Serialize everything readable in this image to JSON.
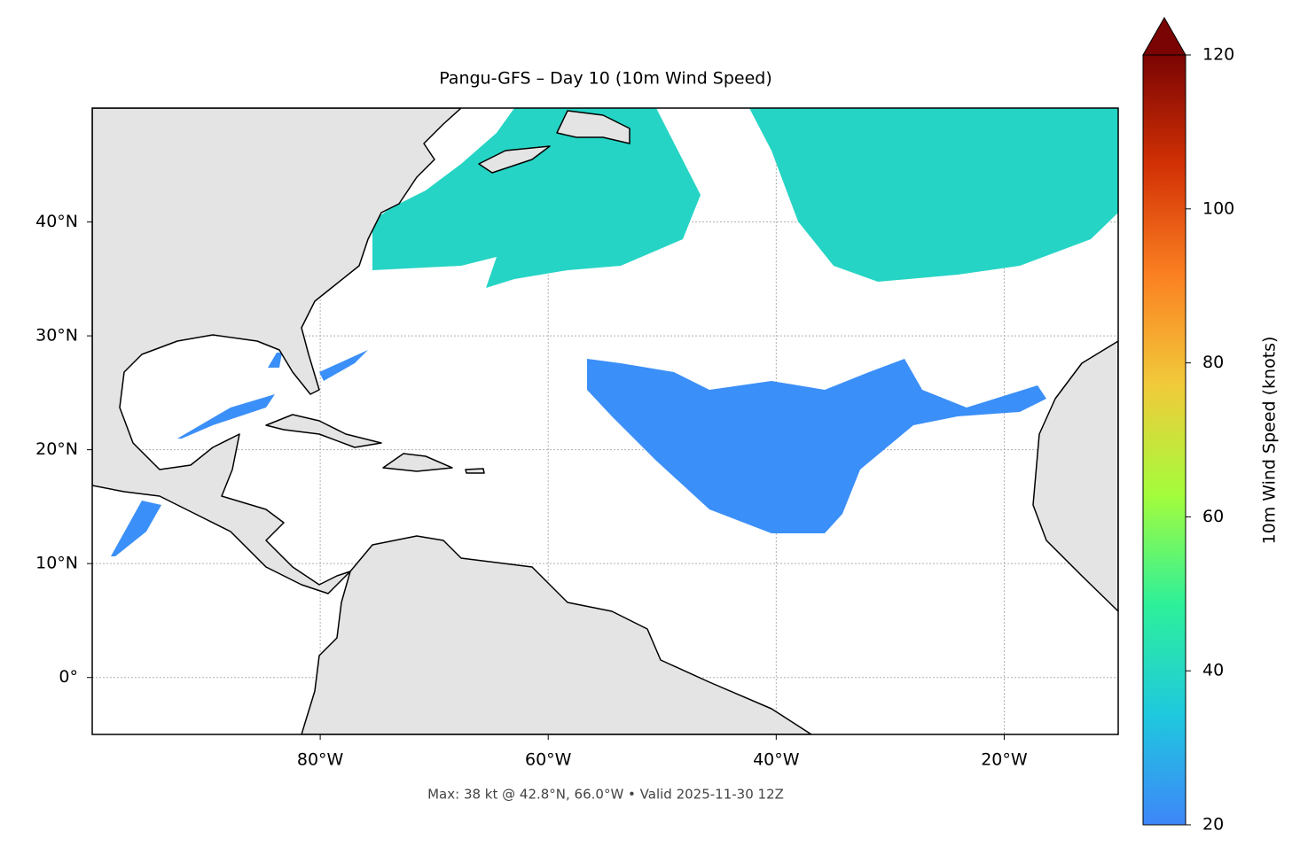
{
  "chart_data": {
    "type": "map",
    "title": "Pangu-GFS – Day 10 (10m Wind Speed)",
    "footnote": "Max: 38 kt @ 42.8°N, 66.0°W • Valid 2025-11-30 12Z",
    "xlim": [
      -100,
      -10
    ],
    "ylim": [
      -5,
      50
    ],
    "xticks": [
      {
        "value": -80,
        "label": "80°W"
      },
      {
        "value": -60,
        "label": "60°W"
      },
      {
        "value": -40,
        "label": "40°W"
      },
      {
        "value": -20,
        "label": "20°W"
      }
    ],
    "yticks": [
      {
        "value": 0,
        "label": "0°"
      },
      {
        "value": 10,
        "label": "10°N"
      },
      {
        "value": 20,
        "label": "20°N"
      },
      {
        "value": 30,
        "label": "30°N"
      },
      {
        "value": 40,
        "label": "40°N"
      }
    ],
    "grid": true,
    "colorbar": {
      "label": "10m Wind Speed (knots)",
      "lim": [
        20,
        120
      ],
      "ticks": [
        20,
        40,
        60,
        80,
        100,
        120
      ],
      "colors": [
        "#3e86f9",
        "#1fc8de",
        "#2df09a",
        "#a4fc3c",
        "#f1ca3a",
        "#fb8022",
        "#d23105",
        "#7a0403"
      ]
    }
  }
}
